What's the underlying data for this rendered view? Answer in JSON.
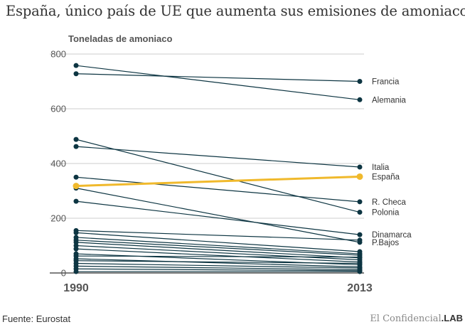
{
  "title": "España, único país de UE que aumenta sus emisiones de amoniaco",
  "source": "Fuente: Eurostat",
  "brand": {
    "prefix": "El Confidencial",
    "suffix": ".LAB"
  },
  "colors": {
    "line": "#0d3542",
    "highlight": "#f0b92c",
    "grid": "#cccccc",
    "axis": "#555555"
  },
  "chart_data": {
    "type": "line",
    "ylabel": "Toneladas de amoniaco",
    "ylim": [
      0,
      800
    ],
    "yticks": [
      "0",
      "200",
      "400",
      "600",
      "800"
    ],
    "x": [
      "1990",
      "2013"
    ],
    "highlight": "España",
    "series": [
      {
        "name": "Francia",
        "values": [
          728,
          700
        ]
      },
      {
        "name": "Alemania",
        "values": [
          758,
          633
        ]
      },
      {
        "name": "Italia",
        "values": [
          462,
          387
        ]
      },
      {
        "name": "España",
        "values": [
          318,
          352
        ]
      },
      {
        "name": "R. Checa",
        "values": [
          350,
          260
        ]
      },
      {
        "name": "Polonia",
        "values": [
          488,
          222
        ]
      },
      {
        "name": "Dinamarca",
        "values": [
          262,
          140
        ]
      },
      {
        "name": "P.Bajos",
        "values": [
          310,
          112
        ]
      },
      {
        "values": [
          155,
          120
        ]
      },
      {
        "values": [
          147,
          78
        ]
      },
      {
        "values": [
          130,
          70
        ]
      },
      {
        "values": [
          120,
          65
        ]
      },
      {
        "values": [
          112,
          55
        ]
      },
      {
        "values": [
          100,
          48
        ]
      },
      {
        "values": [
          88,
          40
        ]
      },
      {
        "values": [
          70,
          30
        ]
      },
      {
        "values": [
          62,
          58
        ]
      },
      {
        "values": [
          52,
          22
        ]
      },
      {
        "values": [
          45,
          35
        ]
      },
      {
        "values": [
          35,
          18
        ]
      },
      {
        "values": [
          25,
          12
        ]
      },
      {
        "values": [
          15,
          8
        ]
      },
      {
        "values": [
          5,
          5
        ]
      }
    ]
  }
}
